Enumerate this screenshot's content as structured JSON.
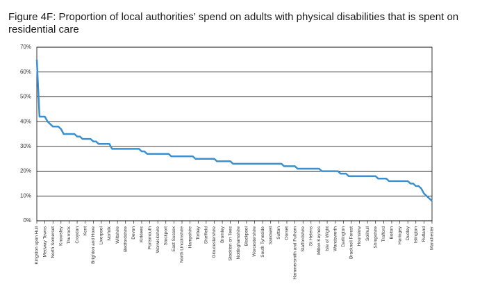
{
  "chart_data": {
    "type": "line",
    "title": "Figure 4F: Proportion of local authorities’ spend on adults with physical disabilities that is spent on residential care",
    "categories": [
      "Kingston upon Hull",
      null,
      null,
      "Medway Towns",
      null,
      null,
      "North Somerset",
      null,
      null,
      "Knowsley",
      null,
      null,
      "Thurrock",
      null,
      null,
      "Croydon",
      null,
      null,
      "Kent",
      null,
      null,
      "Brighton and Hove",
      null,
      null,
      "Liverpool",
      null,
      null,
      "Norfolk",
      null,
      null,
      "Wiltshire",
      null,
      null,
      "Bedfordshire",
      null,
      null,
      "Devon",
      null,
      null,
      "Kirklees",
      null,
      null,
      "Portsmouth",
      null,
      null,
      "Warwickshire",
      null,
      null,
      "Stockport",
      null,
      null,
      "East Sussex",
      null,
      null,
      "North Lincolnshire",
      null,
      null,
      "Hampshire",
      null,
      null,
      "Torbay",
      null,
      null,
      "Sheffield",
      null,
      null,
      "Gloucestershire",
      null,
      null,
      "Bromley",
      null,
      null,
      "Stockton on Tees",
      null,
      null,
      "Nottinghamshire",
      null,
      null,
      "Blackpool",
      null,
      null,
      "Worcestershire",
      null,
      null,
      "South Tyneside",
      null,
      null,
      "Sandwell",
      null,
      null,
      "Sutton",
      null,
      null,
      "Dorset",
      null,
      null,
      "Hammersmith and Fulham",
      null,
      null,
      "Staffordshire",
      null,
      null,
      "St Helens",
      null,
      null,
      "Milton Keynes",
      null,
      null,
      "Isle of Wight",
      null,
      null,
      "Wandsworth",
      null,
      null,
      "Darlington",
      null,
      null,
      "Bracknell Forest",
      null,
      null,
      "Hounslow",
      null,
      null,
      "Solihull",
      null,
      null,
      "Shropshire",
      null,
      null,
      "Trafford",
      null,
      null,
      "Bolton",
      null,
      null,
      "Haringey",
      null,
      null,
      "Dudley",
      null,
      null,
      "Islington",
      null,
      null,
      "Rutland",
      null,
      null,
      "Manchester"
    ],
    "values": [
      65,
      42,
      42,
      42,
      40,
      39,
      38,
      38,
      38,
      37,
      35,
      35,
      35,
      35,
      35,
      34,
      34,
      33,
      33,
      33,
      33,
      32,
      32,
      31,
      31,
      31,
      31,
      31,
      29,
      29,
      29,
      29,
      29,
      29,
      29,
      29,
      29,
      29,
      29,
      28,
      28,
      27,
      27,
      27,
      27,
      27,
      27,
      27,
      27,
      27,
      26,
      26,
      26,
      26,
      26,
      26,
      26,
      26,
      26,
      25,
      25,
      25,
      25,
      25,
      25,
      25,
      25,
      24,
      24,
      24,
      24,
      24,
      24,
      23,
      23,
      23,
      23,
      23,
      23,
      23,
      23,
      23,
      23,
      23,
      23,
      23,
      23,
      23,
      23,
      23,
      23,
      23,
      22,
      22,
      22,
      22,
      22,
      21,
      21,
      21,
      21,
      21,
      21,
      21,
      21,
      21,
      20,
      20,
      20,
      20,
      20,
      20,
      20,
      19,
      19,
      19,
      18,
      18,
      18,
      18,
      18,
      18,
      18,
      18,
      18,
      18,
      18,
      17,
      17,
      17,
      17,
      16,
      16,
      16,
      16,
      16,
      16,
      16,
      16,
      15,
      15,
      14,
      14,
      13,
      11,
      10,
      9,
      8
    ],
    "color": "#3a8fd0",
    "ylim": [
      0,
      70
    ],
    "yticks": [
      {
        "value": 0,
        "label": "0%"
      },
      {
        "value": 10,
        "label": "10%"
      },
      {
        "value": 20,
        "label": "20%"
      },
      {
        "value": 30,
        "label": "30%"
      },
      {
        "value": 40,
        "label": "40%"
      },
      {
        "value": 50,
        "label": "50%"
      },
      {
        "value": 60,
        "label": "60%"
      },
      {
        "value": 70,
        "label": "70%"
      }
    ],
    "grid": true
  }
}
